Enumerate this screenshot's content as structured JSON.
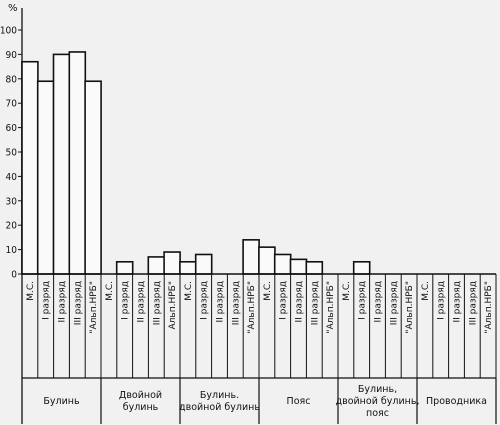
{
  "chart_data": {
    "type": "bar",
    "ylabel": "%",
    "ylim": [
      0,
      100
    ],
    "yticks": [
      "0",
      "10",
      "20",
      "30",
      "40",
      "50",
      "60",
      "70",
      "80",
      "90",
      "100"
    ],
    "grid": false,
    "groups": [
      {
        "label_lines": [
          "Булинь"
        ],
        "bars": [
          {
            "label": "М.С.",
            "value": 87
          },
          {
            "label": "I разряд",
            "value": 79
          },
          {
            "label": "II разряд",
            "value": 90
          },
          {
            "label": "III разряд",
            "value": 91
          },
          {
            "label": "\"Альп.НРБ\"",
            "value": 79
          }
        ]
      },
      {
        "label_lines": [
          "Двойной",
          "булинь"
        ],
        "bars": [
          {
            "label": "М.С.",
            "value": 0
          },
          {
            "label": "I разряд",
            "value": 5
          },
          {
            "label": "II разряд",
            "value": 0
          },
          {
            "label": "III разряд",
            "value": 7
          },
          {
            "label": "Альп.НРБ\"",
            "value": 9
          }
        ]
      },
      {
        "label_lines": [
          "Булинь.",
          "двойной булинь"
        ],
        "bars": [
          {
            "label": "М.С.",
            "value": 5
          },
          {
            "label": "I разряд",
            "value": 8
          },
          {
            "label": "II разряд",
            "value": 0
          },
          {
            "label": "III разряд",
            "value": 0
          },
          {
            "label": "\"Альп.НРБ\"",
            "value": 14
          }
        ]
      },
      {
        "label_lines": [
          "Пояс"
        ],
        "bars": [
          {
            "label": "М.С.",
            "value": 11
          },
          {
            "label": "I разряд",
            "value": 8
          },
          {
            "label": "II разряд",
            "value": 6
          },
          {
            "label": "III разряд",
            "value": 5
          },
          {
            "label": "\"Альп.НРБ\"",
            "value": 0
          }
        ]
      },
      {
        "label_lines": [
          "Булинь,",
          "двойной булинь,",
          "пояс"
        ],
        "bars": [
          {
            "label": "М.С.",
            "value": 0
          },
          {
            "label": "I разряд",
            "value": 5
          },
          {
            "label": "II разряд",
            "value": 0
          },
          {
            "label": "III разряд",
            "value": 0
          },
          {
            "label": "\"Альп.НРБ\"",
            "value": 0
          }
        ]
      },
      {
        "label_lines": [
          "Проводника"
        ],
        "bars": [
          {
            "label": "М.С.",
            "value": 0
          },
          {
            "label": "I разряд",
            "value": 0
          },
          {
            "label": "II разряд",
            "value": 0
          },
          {
            "label": "III разряд",
            "value": 0
          },
          {
            "label": "\"Альп.НРБ\"",
            "value": 0
          }
        ]
      }
    ]
  }
}
